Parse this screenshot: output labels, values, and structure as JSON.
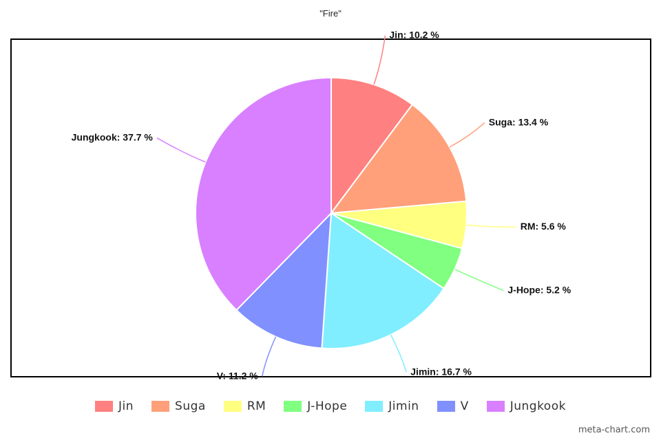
{
  "chart_data": {
    "type": "pie",
    "title": "\"Fire\"",
    "legend_position": "bottom",
    "slices": [
      {
        "name": "Jin",
        "value": 10.2,
        "label": "Jin: 10.2 %",
        "color": "#ff8080"
      },
      {
        "name": "Suga",
        "value": 13.4,
        "label": "Suga: 13.4 %",
        "color": "#ffa07a"
      },
      {
        "name": "RM",
        "value": 5.6,
        "label": "RM: 5.6 %",
        "color": "#ffff80"
      },
      {
        "name": "J-Hope",
        "value": 5.2,
        "label": "J-Hope: 5.2 %",
        "color": "#80ff80"
      },
      {
        "name": "Jimin",
        "value": 16.7,
        "label": "Jimin: 16.7 %",
        "color": "#80eeff"
      },
      {
        "name": "V",
        "value": 11.2,
        "label": "V: 11.2 %",
        "color": "#8090ff"
      },
      {
        "name": "Jungkook",
        "value": 37.7,
        "label": "Jungkook: 37.7 %",
        "color": "#d880ff"
      }
    ]
  },
  "credit": "meta-chart.com"
}
